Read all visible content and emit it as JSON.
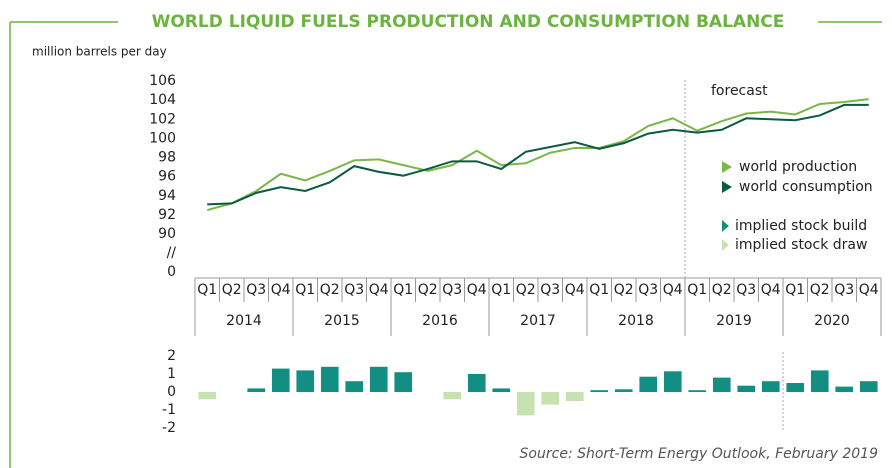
{
  "title": "WORLD LIQUID FUELS PRODUCTION AND CONSUMPTION BALANCE",
  "source": "Source: Short-Term Energy Outlook, February 2019",
  "chart_data": [
    {
      "type": "line",
      "y_label": "million barrels per day",
      "categories": [
        "Q1",
        "Q2",
        "Q3",
        "Q4",
        "Q1",
        "Q2",
        "Q3",
        "Q4",
        "Q1",
        "Q2",
        "Q3",
        "Q4",
        "Q1",
        "Q2",
        "Q3",
        "Q4",
        "Q1",
        "Q2",
        "Q3",
        "Q4",
        "Q1",
        "Q2",
        "Q3",
        "Q4",
        "Q1",
        "Q2",
        "Q3",
        "Q4"
      ],
      "years": [
        "2014",
        "2015",
        "2016",
        "2017",
        "2018",
        "2019",
        "2020"
      ],
      "series": [
        {
          "name": "world production",
          "color": "#7ab648",
          "values": [
            92.5,
            93.2,
            94.5,
            96.3,
            95.6,
            96.6,
            97.7,
            97.8,
            97.2,
            96.6,
            97.2,
            98.7,
            97.2,
            97.4,
            98.5,
            99.0,
            99.0,
            99.7,
            101.3,
            102.1,
            100.8,
            101.8,
            102.6,
            102.8,
            102.5,
            103.6,
            103.8,
            104.1
          ]
        },
        {
          "name": "world consumption",
          "color": "#0c5a3f",
          "values": [
            93.1,
            93.2,
            94.3,
            94.9,
            94.5,
            95.4,
            97.1,
            96.5,
            96.1,
            96.8,
            97.6,
            97.6,
            96.8,
            98.6,
            99.1,
            99.6,
            98.9,
            99.5,
            100.5,
            100.9,
            100.6,
            100.9,
            102.1,
            102.0,
            101.9,
            102.4,
            103.5,
            103.5
          ]
        }
      ],
      "ylim": [
        0,
        106
      ],
      "yticks": [
        0,
        90,
        92,
        94,
        96,
        98,
        100,
        102,
        104,
        106
      ],
      "axis_break": {
        "range": [
          0,
          90
        ],
        "label": "//"
      },
      "forecast": {
        "label": "forecast",
        "start_year": "2019"
      }
    },
    {
      "type": "bar",
      "values": [
        -0.4,
        0,
        0.2,
        1.3,
        1.2,
        1.4,
        0.6,
        1.4,
        1.1,
        0,
        -0.4,
        1.0,
        0.2,
        -1.3,
        -0.7,
        -0.5,
        0.1,
        0.15,
        0.85,
        1.15,
        0.1,
        0.8,
        0.35,
        0.6,
        0.5,
        1.2,
        0.3,
        0.6
      ],
      "legend": [
        {
          "name": "implied stock build",
          "color": "#138e82"
        },
        {
          "name": "implied stock draw",
          "color": "#c5e2b0"
        }
      ],
      "ylim": [
        -2,
        2
      ],
      "yticks": [
        -2,
        -1,
        0,
        1,
        2
      ]
    }
  ]
}
